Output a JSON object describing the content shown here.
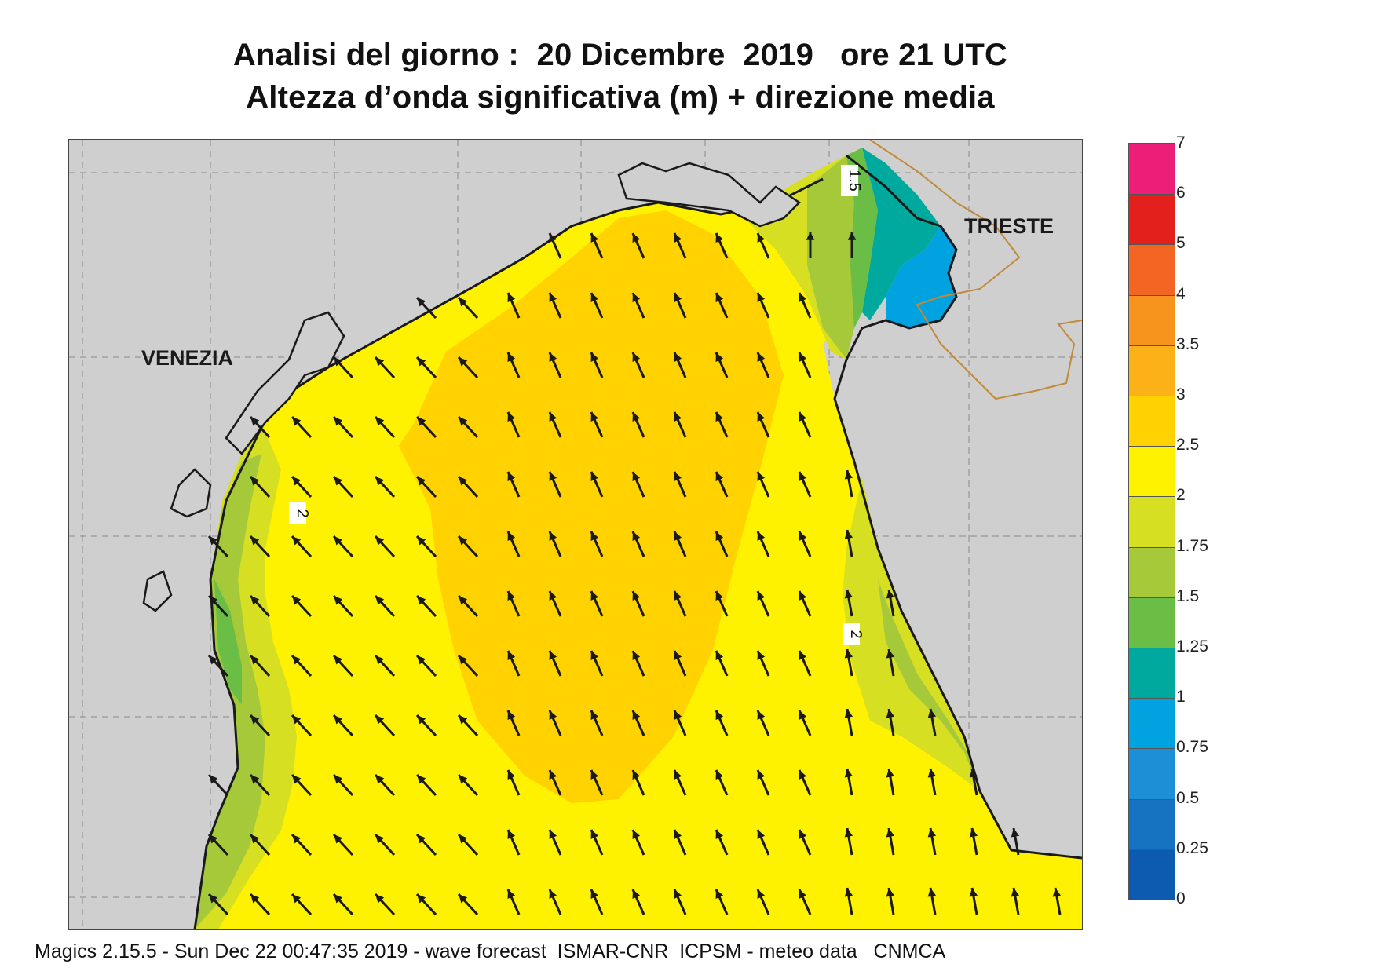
{
  "title": {
    "line1": "Analisi del giorno :  20 Dicembre  2019   ore 21 UTC",
    "line2": "Altezza d’onda significativa (m) + direzione media"
  },
  "map": {
    "cities": [
      {
        "name": "VENEZIA"
      },
      {
        "name": "TRIESTE"
      }
    ],
    "contour_labels": [
      "1.5",
      "2",
      "2"
    ],
    "land_color": "#cfcfcf",
    "coast_color": "#1a1a1a",
    "border_color": "#c08a3a",
    "arrow_color": "#1a1a1a",
    "wave_direction": "northwest"
  },
  "colorbar": {
    "ticks": [
      "7",
      "6",
      "5",
      "4",
      "3.5",
      "3",
      "2.5",
      "2",
      "1.75",
      "1.5",
      "1.25",
      "1",
      "0.75",
      "0.5",
      "0.25",
      "0"
    ],
    "colors": [
      "#ec1e78",
      "#e3201c",
      "#f26522",
      "#f7941d",
      "#fbb117",
      "#ffd200",
      "#fff200",
      "#d7df23",
      "#a6c93a",
      "#6abd45",
      "#00a99d",
      "#00a2e0",
      "#1c8fd6",
      "#1673c2",
      "#0d5bb0"
    ]
  },
  "footer": "Magics 2.15.5 - Sun Dec 22 00:47:35 2019 - wave forecast  ISMAR-CNR  ICPSM - meteo data   CNMCA"
}
